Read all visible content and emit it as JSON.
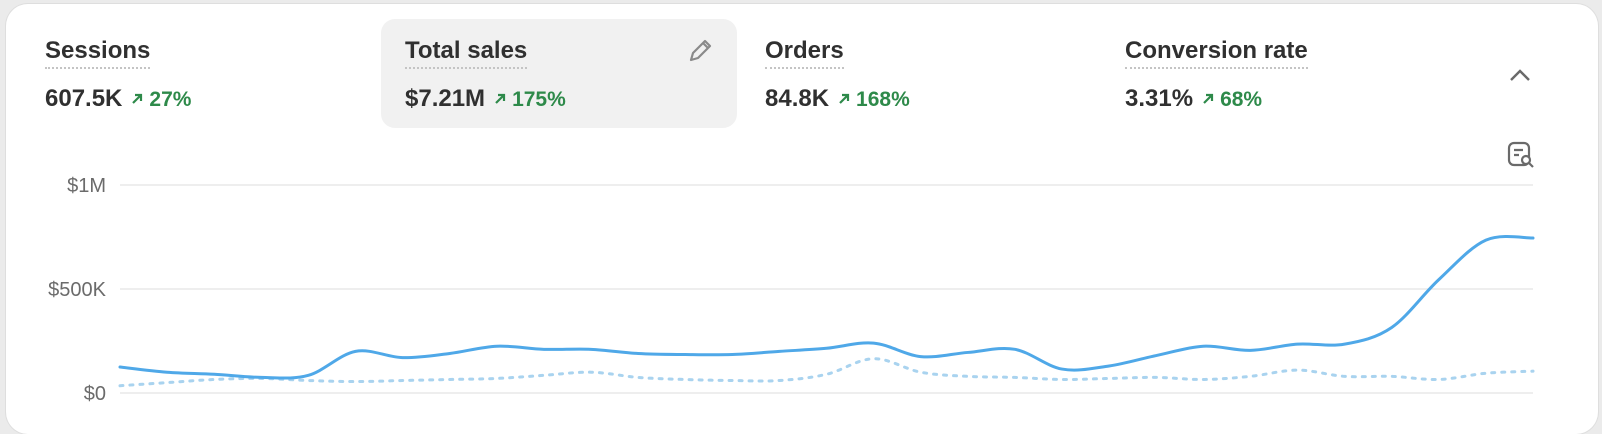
{
  "metrics": [
    {
      "label": "Sessions",
      "value": "607.5K",
      "change": "27%"
    },
    {
      "label": "Total sales",
      "value": "$7.21M",
      "change": "175%"
    },
    {
      "label": "Orders",
      "value": "84.8K",
      "change": "168%"
    },
    {
      "label": "Conversion rate",
      "value": "3.31%",
      "change": "68%"
    }
  ],
  "chart_data": {
    "type": "line",
    "ylim": [
      0,
      1000000
    ],
    "yticks": [
      {
        "value": 0,
        "label": "$0"
      },
      {
        "value": 500000,
        "label": "$500K"
      },
      {
        "value": 1000000,
        "label": "$1M"
      }
    ],
    "grid": true,
    "series": [
      {
        "color": "#4fa8e8",
        "style": "solid",
        "values": [
          125000,
          100000,
          90000,
          75000,
          85000,
          200000,
          170000,
          190000,
          225000,
          210000,
          210000,
          190000,
          185000,
          185000,
          200000,
          215000,
          240000,
          175000,
          195000,
          210000,
          115000,
          130000,
          180000,
          225000,
          205000,
          235000,
          235000,
          315000,
          545000,
          735000,
          745000
        ]
      },
      {
        "color": "#a9d3ef",
        "style": "dotted",
        "values": [
          35000,
          50000,
          65000,
          70000,
          60000,
          55000,
          60000,
          65000,
          70000,
          85000,
          100000,
          75000,
          65000,
          60000,
          60000,
          90000,
          165000,
          100000,
          80000,
          75000,
          65000,
          70000,
          75000,
          65000,
          80000,
          110000,
          80000,
          80000,
          65000,
          95000,
          105000
        ]
      }
    ]
  }
}
